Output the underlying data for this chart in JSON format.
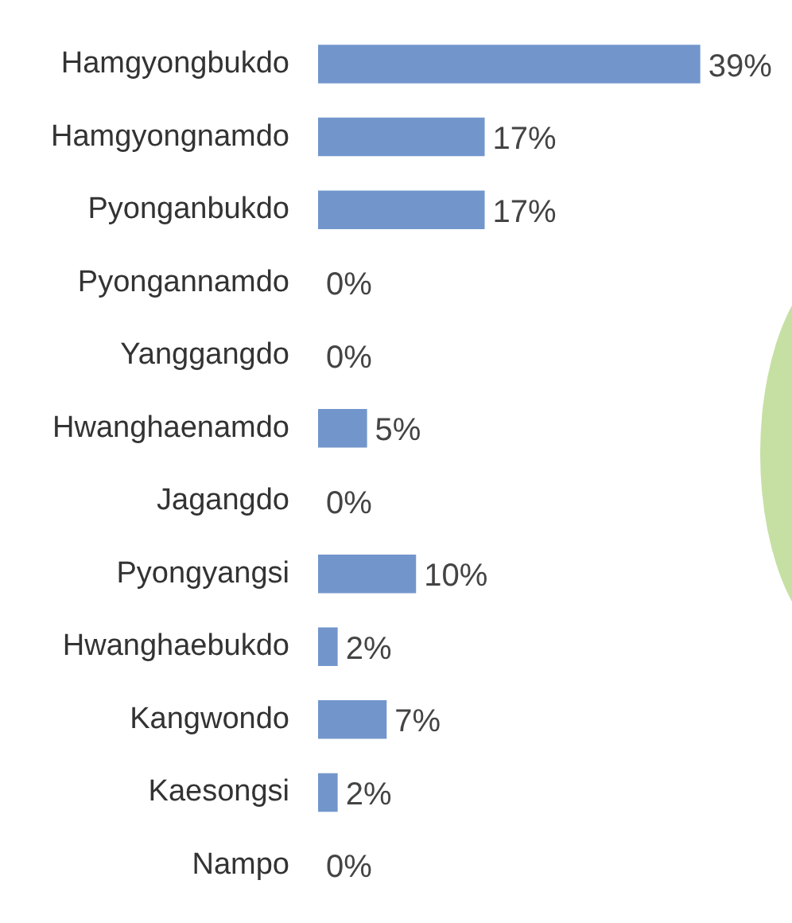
{
  "chart_data": {
    "type": "bar",
    "orientation": "horizontal",
    "categories": [
      "Hamgyongbukdo",
      "Hamgyongnamdo",
      "Pyonganbukdo",
      "Pyongannamdo",
      "Yanggangdo",
      "Hwanghaenamdo",
      "Jagangdo",
      "Pyongyangsi",
      "Hwanghaebukdo",
      "Kangwondo",
      "Kaesongsi",
      "Nampo"
    ],
    "values": [
      39,
      17,
      17,
      0,
      0,
      5,
      0,
      10,
      2,
      7,
      2,
      0
    ],
    "value_labels": [
      "39%",
      "17%",
      "17%",
      "0%",
      "0%",
      "5%",
      "0%",
      "10%",
      "2%",
      "7%",
      "2%",
      "0%"
    ],
    "color": "#7296cc",
    "grid": false,
    "legend": false
  }
}
